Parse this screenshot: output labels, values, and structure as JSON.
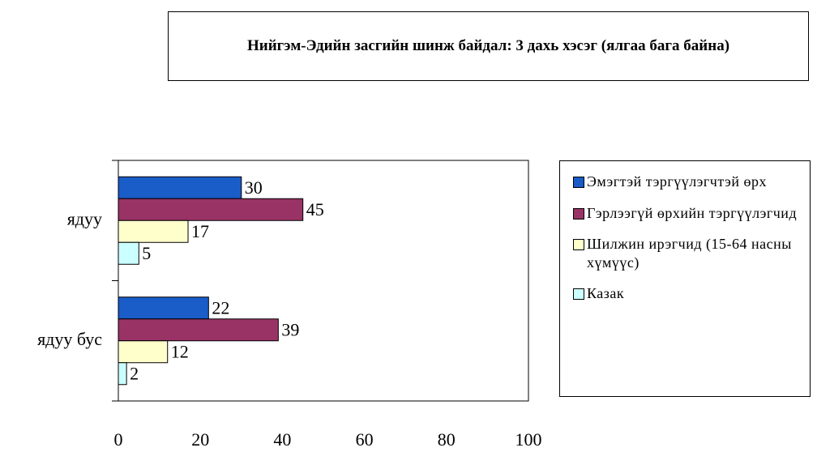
{
  "chart_data": {
    "type": "barh",
    "title": "Нийгэм-Эдийн засгийн шинж байдал: 3 дахь хэсэг (ялгаа бага байна)",
    "categories": [
      "ядуу",
      "ядуу бус"
    ],
    "series": [
      {
        "name": "Эмэгтэй тэргүүлэгчтэй өрх",
        "color": "#1a5cc8",
        "values": [
          30,
          22
        ]
      },
      {
        "name": "Гэрлээгүй өрхийн тэргүүлэгчид",
        "color": "#993366",
        "values": [
          45,
          39
        ]
      },
      {
        "name": "Шилжин ирэгчид (15-64 насны хүмүүс)",
        "color": "#ffffcc",
        "values": [
          17,
          12
        ]
      },
      {
        "name": "Казак",
        "color": "#ccffff",
        "values": [
          5,
          2
        ]
      }
    ],
    "xlim": [
      0,
      100
    ],
    "xticks": [
      0,
      20,
      40,
      60,
      80,
      100
    ],
    "legend": "right"
  }
}
